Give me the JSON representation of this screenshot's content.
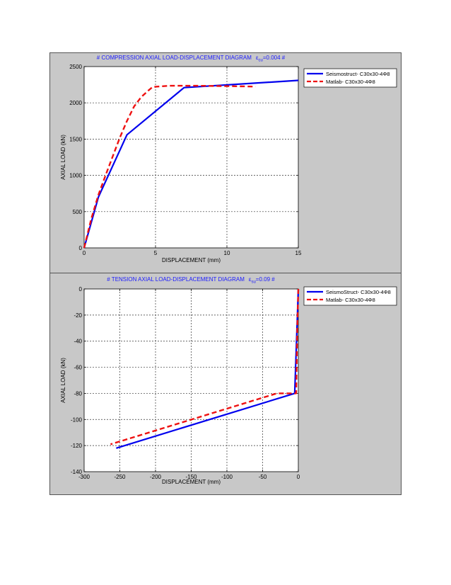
{
  "colors": {
    "panel_bg": "#c8c8c8",
    "axes_bg": "#ffffff",
    "seismostruct": "#0000ee",
    "matlab": "#ee1111",
    "title": "#1a1aff",
    "grid": "#333333"
  },
  "chart_data": [
    {
      "type": "line",
      "title_prefix": "# COMPRESSION AXIAL LOAD-DISPLACEMENT DIAGRAM",
      "title_symbol": "ε",
      "title_sub": "cu",
      "title_suffix": "=0.004 #",
      "xlabel": "DISPLACEMENT (mm)",
      "ylabel": "AXIAL LOAD (kN)",
      "xlim": [
        0,
        15
      ],
      "ylim": [
        0,
        2500
      ],
      "xticks": [
        "0",
        "5",
        "10",
        "15"
      ],
      "xtick_values": [
        0,
        5,
        10,
        15
      ],
      "yticks": [
        "0",
        "500",
        "1000",
        "1500",
        "2000",
        "2500"
      ],
      "ytick_values": [
        0,
        500,
        1000,
        1500,
        2000,
        2500
      ],
      "grid": true,
      "legend_position": "top-right, outside axes",
      "series": [
        {
          "name": "Seismostruct- C30x30-4Φ8",
          "color": "#0000ee",
          "style": "solid",
          "x": [
            0,
            1,
            3,
            7,
            15
          ],
          "y": [
            0,
            700,
            1560,
            2210,
            2310
          ]
        },
        {
          "name": "Matlab- C30x30-4Φ8",
          "color": "#ee1111",
          "style": "dashed",
          "x": [
            0,
            0.5,
            1,
            1.5,
            2,
            2.5,
            3,
            3.5,
            4,
            4.5,
            4.8,
            6,
            8,
            10,
            12
          ],
          "y": [
            0,
            400,
            730,
            1000,
            1260,
            1520,
            1750,
            1950,
            2080,
            2170,
            2220,
            2235,
            2235,
            2230,
            2225
          ]
        }
      ]
    },
    {
      "type": "line",
      "title_prefix": "# TENSION AXIAL LOAD-DISPLACEMENT DIAGRAM",
      "title_symbol": "ε",
      "title_sub": "su",
      "title_suffix": "=0.09 #",
      "xlabel": "DISPLACEMENT (mm)",
      "ylabel": "AXIAL LOAD (kN)",
      "xlim": [
        -300,
        0
      ],
      "ylim": [
        -140,
        0
      ],
      "xticks": [
        "-300",
        "-250",
        "-200",
        "-150",
        "-100",
        "-50",
        "0"
      ],
      "xtick_values": [
        -300,
        -250,
        -200,
        -150,
        -100,
        -50,
        0
      ],
      "yticks": [
        "0",
        "-20",
        "-40",
        "-60",
        "-80",
        "-100",
        "-120",
        "-140"
      ],
      "ytick_values": [
        0,
        -20,
        -40,
        -60,
        -80,
        -100,
        -120,
        -140
      ],
      "grid": true,
      "legend_position": "top-right, outside axes",
      "series": [
        {
          "name": "SeismoStruct- C30x30-4Φ8",
          "color": "#0000ee",
          "style": "solid",
          "x": [
            0,
            -5,
            -255
          ],
          "y": [
            0,
            -80,
            -122
          ]
        },
        {
          "name": "Matlab- C30x30-4Φ8",
          "color": "#ee1111",
          "style": "dashed",
          "x": [
            0,
            -1.5,
            -3,
            -30,
            -263
          ],
          "y": [
            0,
            -30,
            -80,
            -80,
            -119
          ]
        }
      ]
    }
  ]
}
